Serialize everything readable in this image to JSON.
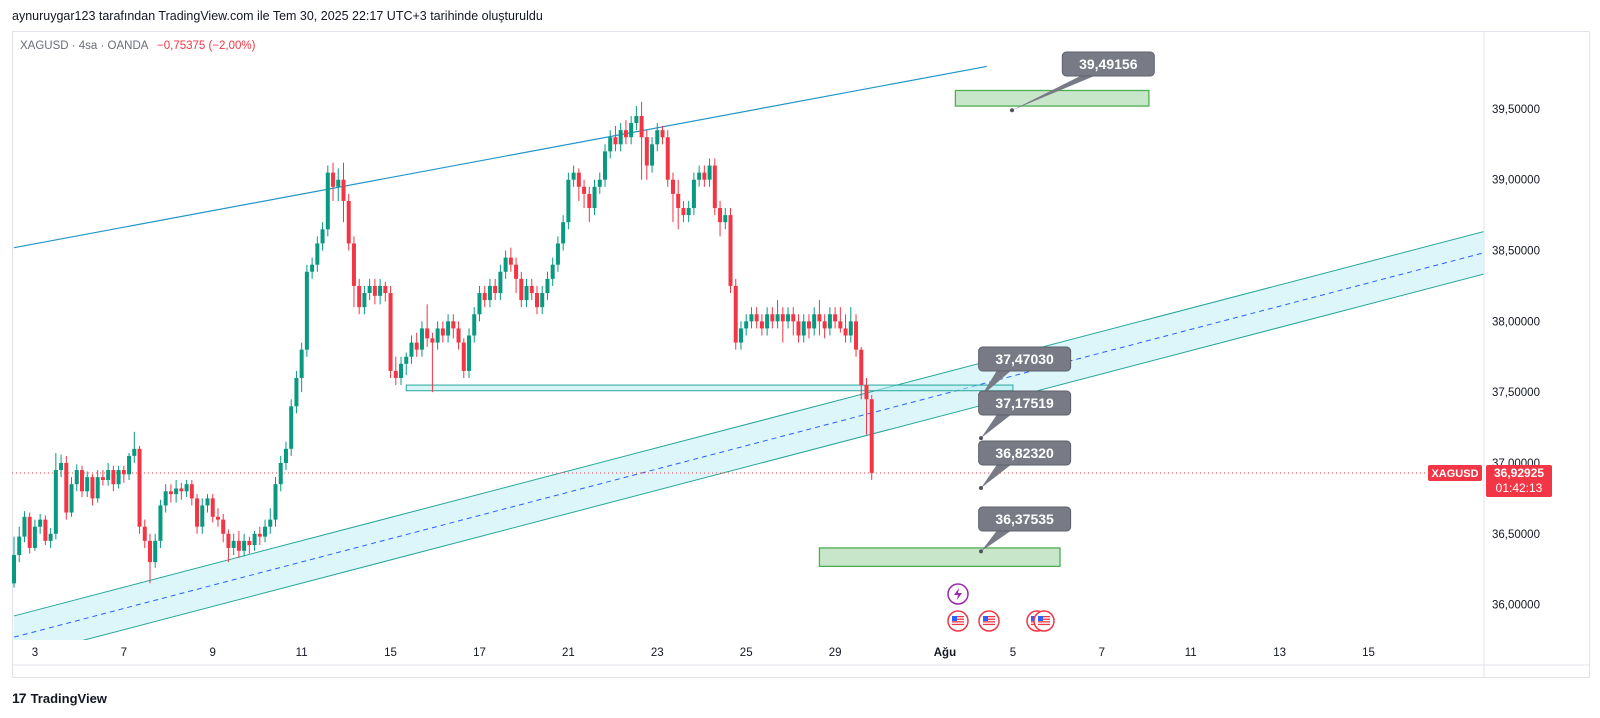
{
  "header": {
    "caption": "aynuruygar123 tarafından TradingView.com ile Tem 30, 2025 22:17 UTC+3 tarihinde oluşturuldu"
  },
  "symbol_bar": {
    "symbol": "XAGUSD · 4sa · OANDA",
    "change": "−0,75375 (−2,00%)"
  },
  "price_tag": {
    "symbol": "XAGUSD",
    "price": "36,92925",
    "countdown": "01:42:13"
  },
  "footer": {
    "brand": "TradingView",
    "logo": "17"
  },
  "colors": {
    "up": "#089981",
    "down": "#f23645",
    "channel": "#26a69a",
    "channel_fill": "#b2ebf2",
    "trendline": "#2196c8",
    "target_fill": "#c8e6c9",
    "target_border": "#4caf50",
    "callout": "#787b86"
  },
  "chart_data": {
    "type": "candlestick",
    "title": "XAGUSD · 4sa · OANDA",
    "y_ticks": [
      "39,50000",
      "39,00000",
      "38,50000",
      "38,00000",
      "37,50000",
      "37,00000",
      "36,50000",
      "36,00000"
    ],
    "y_tick_values": [
      39.5,
      39.0,
      38.5,
      38.0,
      37.5,
      37.0,
      36.5,
      36.0
    ],
    "ylim": [
      35.75,
      40.05
    ],
    "x_ticks": [
      "3",
      "7",
      "9",
      "11",
      "15",
      "17",
      "21",
      "23",
      "25",
      "29",
      "Ağu",
      "5",
      "7",
      "11",
      "13",
      "15"
    ],
    "x_tick_index": [
      4,
      21,
      38,
      55,
      72,
      89,
      106,
      123,
      140,
      157,
      178,
      191,
      208,
      225,
      242,
      259
    ],
    "last_price": 36.92925,
    "candles": [
      [
        36.15,
        36.35,
        36.12,
        36.48
      ],
      [
        36.35,
        36.48,
        36.3,
        36.55
      ],
      [
        36.48,
        36.62,
        36.44,
        36.66
      ],
      [
        36.62,
        36.4,
        36.36,
        36.65
      ],
      [
        36.4,
        36.55,
        36.38,
        36.6
      ],
      [
        36.55,
        36.6,
        36.5,
        36.64
      ],
      [
        36.6,
        36.45,
        36.42,
        36.63
      ],
      [
        36.45,
        36.5,
        36.4,
        36.54
      ],
      [
        36.5,
        36.95,
        36.46,
        37.07
      ],
      [
        36.95,
        37.0,
        36.9,
        37.06
      ],
      [
        37.0,
        36.65,
        36.6,
        37.05
      ],
      [
        36.65,
        36.85,
        36.62,
        36.9
      ],
      [
        36.85,
        36.95,
        36.8,
        36.99
      ],
      [
        36.95,
        36.8,
        36.76,
        36.98
      ],
      [
        36.8,
        36.9,
        36.76,
        36.94
      ],
      [
        36.9,
        36.75,
        36.7,
        36.92
      ],
      [
        36.75,
        36.9,
        36.72,
        36.95
      ],
      [
        36.9,
        36.88,
        36.84,
        36.95
      ],
      [
        36.88,
        36.95,
        36.84,
        37.0
      ],
      [
        36.95,
        36.85,
        36.8,
        36.98
      ],
      [
        36.85,
        36.95,
        36.82,
        36.98
      ],
      [
        36.95,
        36.92,
        36.86,
        36.98
      ],
      [
        36.92,
        37.05,
        36.88,
        37.07
      ],
      [
        37.05,
        37.1,
        37.0,
        37.22
      ],
      [
        37.1,
        36.55,
        36.5,
        37.12
      ],
      [
        36.55,
        36.45,
        36.4,
        36.6
      ],
      [
        36.45,
        36.3,
        36.15,
        36.5
      ],
      [
        36.3,
        36.45,
        36.26,
        36.5
      ],
      [
        36.45,
        36.7,
        36.4,
        36.74
      ],
      [
        36.7,
        36.8,
        36.65,
        36.85
      ],
      [
        36.8,
        36.78,
        36.72,
        36.85
      ],
      [
        36.78,
        36.82,
        36.72,
        36.88
      ],
      [
        36.82,
        36.8,
        36.74,
        36.86
      ],
      [
        36.8,
        36.85,
        36.76,
        36.88
      ],
      [
        36.85,
        36.75,
        36.7,
        36.88
      ],
      [
        36.75,
        36.55,
        36.5,
        36.78
      ],
      [
        36.55,
        36.7,
        36.5,
        36.75
      ],
      [
        36.7,
        36.75,
        36.65,
        36.78
      ],
      [
        36.75,
        36.62,
        36.58,
        36.78
      ],
      [
        36.62,
        36.6,
        36.55,
        36.68
      ],
      [
        36.6,
        36.5,
        36.44,
        36.64
      ],
      [
        36.5,
        36.4,
        36.3,
        36.53
      ],
      [
        36.4,
        36.45,
        36.35,
        36.5
      ],
      [
        36.45,
        36.38,
        36.33,
        36.52
      ],
      [
        36.38,
        36.45,
        36.34,
        36.5
      ],
      [
        36.45,
        36.42,
        36.36,
        36.48
      ],
      [
        36.42,
        36.5,
        36.38,
        36.52
      ],
      [
        36.5,
        36.48,
        36.42,
        36.55
      ],
      [
        36.48,
        36.55,
        36.44,
        36.6
      ],
      [
        36.55,
        36.6,
        36.5,
        36.68
      ],
      [
        36.6,
        36.85,
        36.55,
        36.9
      ],
      [
        36.85,
        37.0,
        36.8,
        37.05
      ],
      [
        37.0,
        37.1,
        36.95,
        37.15
      ],
      [
        37.1,
        37.4,
        37.05,
        37.45
      ],
      [
        37.4,
        37.6,
        37.35,
        37.65
      ],
      [
        37.6,
        37.8,
        37.5,
        37.85
      ],
      [
        37.8,
        38.35,
        37.75,
        38.4
      ],
      [
        38.35,
        38.4,
        38.3,
        38.45
      ],
      [
        38.4,
        38.55,
        38.35,
        38.6
      ],
      [
        38.55,
        38.65,
        38.5,
        38.7
      ],
      [
        38.65,
        39.05,
        38.6,
        39.1
      ],
      [
        39.05,
        38.95,
        38.85,
        39.12
      ],
      [
        38.95,
        39.0,
        38.85,
        39.08
      ],
      [
        39.0,
        38.85,
        38.7,
        39.12
      ],
      [
        38.85,
        38.55,
        38.5,
        38.9
      ],
      [
        38.55,
        38.25,
        38.1,
        38.6
      ],
      [
        38.25,
        38.1,
        38.05,
        38.3
      ],
      [
        38.1,
        38.2,
        38.05,
        38.25
      ],
      [
        38.2,
        38.25,
        38.15,
        38.3
      ],
      [
        38.25,
        38.18,
        38.12,
        38.3
      ],
      [
        38.18,
        38.25,
        38.12,
        38.3
      ],
      [
        38.25,
        38.2,
        38.14,
        38.28
      ],
      [
        38.2,
        37.65,
        37.6,
        38.25
      ],
      [
        37.65,
        37.6,
        37.55,
        37.75
      ],
      [
        37.6,
        37.7,
        37.55,
        37.75
      ],
      [
        37.7,
        37.75,
        37.62,
        37.78
      ],
      [
        37.75,
        37.85,
        37.7,
        37.9
      ],
      [
        37.85,
        37.8,
        37.75,
        37.92
      ],
      [
        37.8,
        37.95,
        37.75,
        38.0
      ],
      [
        37.95,
        37.88,
        37.82,
        38.12
      ],
      [
        37.88,
        37.85,
        37.5,
        37.92
      ],
      [
        37.85,
        37.95,
        37.8,
        38.0
      ],
      [
        37.95,
        37.9,
        37.85,
        38.0
      ],
      [
        37.9,
        38.0,
        37.85,
        38.05
      ],
      [
        38.0,
        37.95,
        37.88,
        38.05
      ],
      [
        37.95,
        37.85,
        37.8,
        38.0
      ],
      [
        37.85,
        37.65,
        37.6,
        37.88
      ],
      [
        37.65,
        37.9,
        37.6,
        37.95
      ],
      [
        37.9,
        38.05,
        37.85,
        38.1
      ],
      [
        38.05,
        38.2,
        38.0,
        38.25
      ],
      [
        38.2,
        38.15,
        38.1,
        38.25
      ],
      [
        38.15,
        38.25,
        38.1,
        38.3
      ],
      [
        38.25,
        38.2,
        38.15,
        38.3
      ],
      [
        38.2,
        38.35,
        38.15,
        38.4
      ],
      [
        38.35,
        38.45,
        38.3,
        38.5
      ],
      [
        38.45,
        38.4,
        38.35,
        38.52
      ],
      [
        38.4,
        38.3,
        38.2,
        38.45
      ],
      [
        38.3,
        38.15,
        38.1,
        38.35
      ],
      [
        38.15,
        38.25,
        38.1,
        38.3
      ],
      [
        38.25,
        38.2,
        38.15,
        38.3
      ],
      [
        38.2,
        38.1,
        38.05,
        38.25
      ],
      [
        38.1,
        38.2,
        38.05,
        38.25
      ],
      [
        38.2,
        38.3,
        38.15,
        38.35
      ],
      [
        38.3,
        38.4,
        38.25,
        38.45
      ],
      [
        38.4,
        38.55,
        38.35,
        38.6
      ],
      [
        38.55,
        38.7,
        38.5,
        38.75
      ],
      [
        38.7,
        39.0,
        38.65,
        39.05
      ],
      [
        39.0,
        39.05,
        38.95,
        39.1
      ],
      [
        39.05,
        38.95,
        38.85,
        39.08
      ],
      [
        38.95,
        38.9,
        38.8,
        39.0
      ],
      [
        38.9,
        38.8,
        38.7,
        38.95
      ],
      [
        38.8,
        38.95,
        38.75,
        39.0
      ],
      [
        38.95,
        39.0,
        38.9,
        39.05
      ],
      [
        39.0,
        39.2,
        38.95,
        39.25
      ],
      [
        39.2,
        39.3,
        39.15,
        39.35
      ],
      [
        39.3,
        39.25,
        39.2,
        39.38
      ],
      [
        39.25,
        39.35,
        39.2,
        39.4
      ],
      [
        39.35,
        39.3,
        39.25,
        39.42
      ],
      [
        39.3,
        39.4,
        39.25,
        39.45
      ],
      [
        39.4,
        39.45,
        39.35,
        39.52
      ],
      [
        39.45,
        39.3,
        39.0,
        39.55
      ],
      [
        39.3,
        39.1,
        39.0,
        39.35
      ],
      [
        39.1,
        39.25,
        39.05,
        39.3
      ],
      [
        39.25,
        39.35,
        39.2,
        39.4
      ],
      [
        39.35,
        39.3,
        39.25,
        39.38
      ],
      [
        39.3,
        39.0,
        38.95,
        39.35
      ],
      [
        39.0,
        38.9,
        38.7,
        39.05
      ],
      [
        38.9,
        38.8,
        38.65,
        39.0
      ],
      [
        38.8,
        38.75,
        38.7,
        38.85
      ],
      [
        38.75,
        38.8,
        38.7,
        38.85
      ],
      [
        38.8,
        39.0,
        38.75,
        39.05
      ],
      [
        39.0,
        39.05,
        38.95,
        39.1
      ],
      [
        39.05,
        39.0,
        38.95,
        39.1
      ],
      [
        39.0,
        39.1,
        38.95,
        39.15
      ],
      [
        39.1,
        38.8,
        38.75,
        39.15
      ],
      [
        38.8,
        38.7,
        38.6,
        38.85
      ],
      [
        38.7,
        38.75,
        38.65,
        38.8
      ],
      [
        38.75,
        38.25,
        38.2,
        38.8
      ],
      [
        38.25,
        37.85,
        37.8,
        38.3
      ],
      [
        37.85,
        37.95,
        37.8,
        38.0
      ],
      [
        37.95,
        38.0,
        37.9,
        38.05
      ],
      [
        38.0,
        38.05,
        37.95,
        38.1
      ],
      [
        38.05,
        38.0,
        37.95,
        38.1
      ],
      [
        38.0,
        37.95,
        37.9,
        38.05
      ],
      [
        37.95,
        38.05,
        37.9,
        38.1
      ],
      [
        38.05,
        38.0,
        37.95,
        38.1
      ],
      [
        38.0,
        38.05,
        37.95,
        38.15
      ],
      [
        38.05,
        38.0,
        37.85,
        38.1
      ],
      [
        38.0,
        38.05,
        37.95,
        38.1
      ],
      [
        38.05,
        38.0,
        37.9,
        38.1
      ],
      [
        38.0,
        37.9,
        37.85,
        38.05
      ],
      [
        37.9,
        38.0,
        37.85,
        38.05
      ],
      [
        38.0,
        37.95,
        37.88,
        38.05
      ],
      [
        37.95,
        38.05,
        37.9,
        38.1
      ],
      [
        38.05,
        38.0,
        37.9,
        38.15
      ],
      [
        38.0,
        37.95,
        37.88,
        38.05
      ],
      [
        37.95,
        38.05,
        37.9,
        38.1
      ],
      [
        38.05,
        38.0,
        37.95,
        38.1
      ],
      [
        38.0,
        37.95,
        37.92,
        38.1
      ],
      [
        37.95,
        37.9,
        37.85,
        38.05
      ],
      [
        37.9,
        38.0,
        37.85,
        38.1
      ],
      [
        38.0,
        37.8,
        37.75,
        38.05
      ],
      [
        37.8,
        37.55,
        37.45,
        37.82
      ],
      [
        37.55,
        37.45,
        37.2,
        37.6
      ],
      [
        37.45,
        36.93,
        36.88,
        37.48
      ]
    ],
    "annotations": {
      "labels": [
        {
          "text": "39,49156",
          "value": 39.49156
        },
        {
          "text": "37,47030",
          "value": 37.4703
        },
        {
          "text": "37,17519",
          "value": 37.17519
        },
        {
          "text": "36,82320",
          "value": 36.8232
        },
        {
          "text": "36,37535",
          "value": 36.37535
        }
      ],
      "support_zone": [
        37.51,
        37.55
      ],
      "target_zones": [
        [
          39.52,
          39.63
        ],
        [
          36.27,
          36.4
        ]
      ],
      "upper_trendline": [
        [
          0,
          38.52
        ],
        [
          186,
          39.8
        ]
      ],
      "channel_mid": [
        [
          0,
          35.77
        ],
        [
          350,
          39.15
        ]
      ],
      "channel_width": 0.15
    },
    "event_icons": [
      "bolt-icon",
      "us-flag-icon",
      "us-flag-icon",
      "us-flag-icon",
      "us-flag-icon"
    ]
  }
}
